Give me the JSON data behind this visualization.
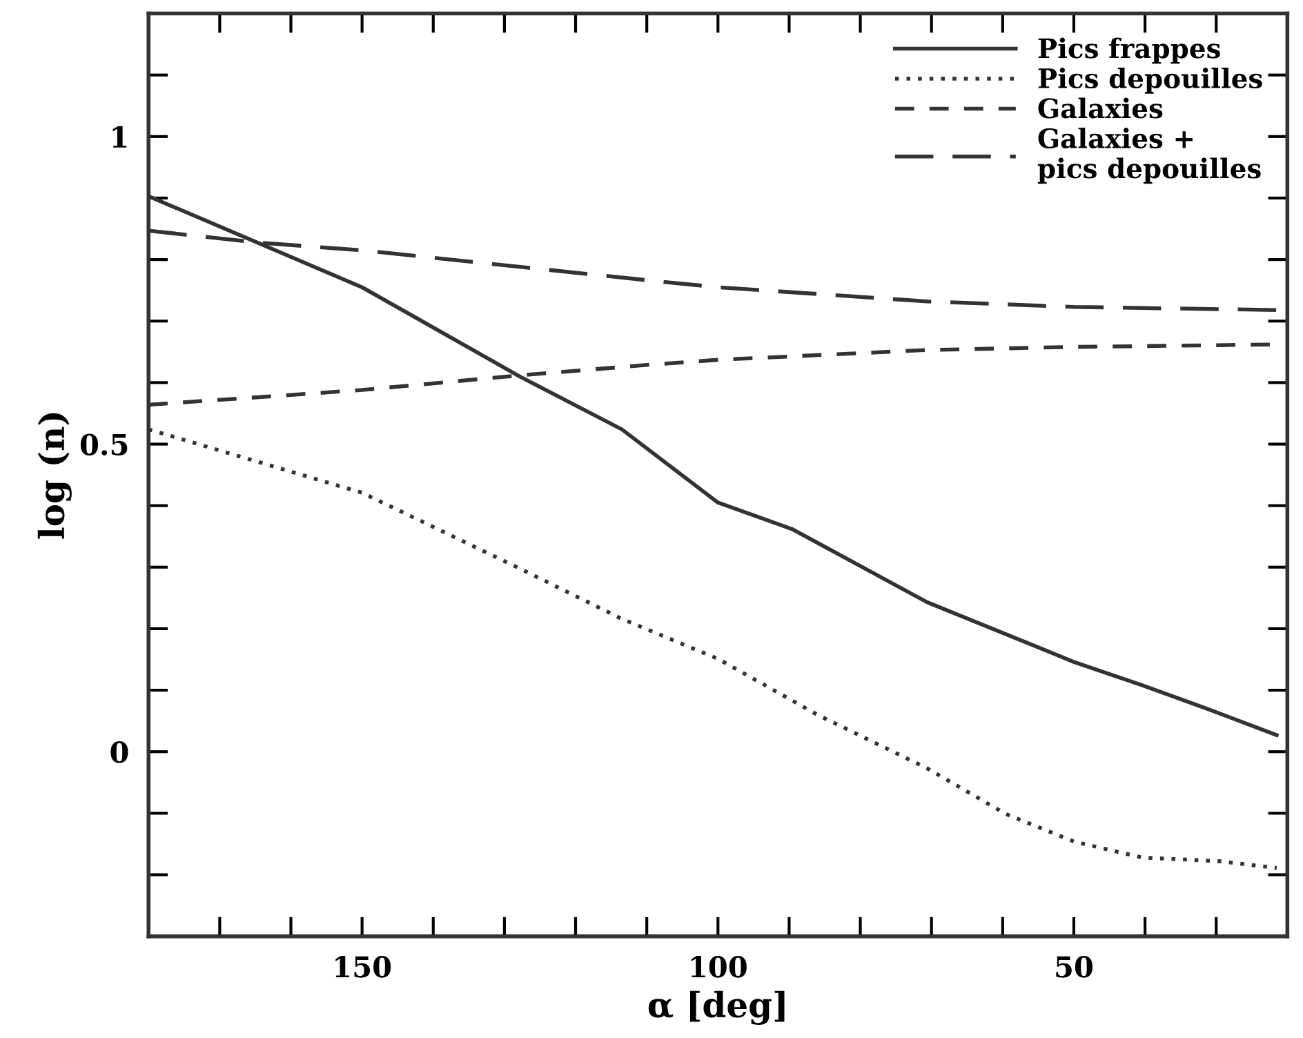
{
  "chart_data": {
    "type": "line",
    "xlabel": "α [deg]",
    "ylabel": "log (n)",
    "xlim": [
      180,
      20
    ],
    "ylim": [
      -0.3,
      1.2
    ],
    "xticks": [
      {
        "value": 170,
        "label": null
      },
      {
        "value": 160,
        "label": null
      },
      150,
      {
        "value": 140,
        "label": null
      },
      {
        "value": 130,
        "label": null
      },
      {
        "value": 120,
        "label": null
      },
      {
        "value": 110,
        "label": null
      },
      100,
      {
        "value": 90,
        "label": null
      },
      {
        "value": 80,
        "label": null
      },
      {
        "value": 70,
        "label": null
      },
      {
        "value": 60,
        "label": null
      },
      50,
      {
        "value": 40,
        "label": null
      },
      {
        "value": 30,
        "label": null
      }
    ],
    "yticks": [
      {
        "value": -0.2,
        "label": null
      },
      {
        "value": -0.1,
        "label": null
      },
      0,
      {
        "value": 0.1,
        "label": null
      },
      {
        "value": 0.2,
        "label": null
      },
      {
        "value": 0.3,
        "label": null
      },
      {
        "value": 0.4,
        "label": null
      },
      0.5,
      {
        "value": 0.6,
        "label": null
      },
      {
        "value": 0.7,
        "label": null
      },
      {
        "value": 0.8,
        "label": null
      },
      {
        "value": 0.9,
        "label": null
      },
      1,
      {
        "value": 1.1,
        "label": null
      }
    ],
    "grid": false,
    "legend": "top right",
    "series": [
      {
        "name": "Pics frappes",
        "color": "#333333",
        "line_style": "solid",
        "x": [
          180,
          150,
          127.7,
          113.5,
          100,
          89.6,
          70.6,
          50,
          40.4,
          31.3,
          21.5
        ],
        "values": [
          0.903,
          0.755,
          0.609,
          0.524,
          0.405,
          0.362,
          0.243,
          0.146,
          0.108,
          0.07,
          0.027
        ]
      },
      {
        "name": "Pics depouilles",
        "color": "#333333",
        "line_style": "dotted",
        "x": [
          180,
          150,
          127.7,
          113.5,
          100,
          86,
          70.6,
          59.6,
          50,
          40.4,
          29.5,
          21.5
        ],
        "values": [
          0.524,
          0.421,
          0.297,
          0.216,
          0.151,
          0.06,
          -0.027,
          -0.101,
          -0.146,
          -0.172,
          -0.178,
          -0.189
        ]
      },
      {
        "name": "Galaxies",
        "color": "#333333",
        "line_style": "dashed",
        "x": [
          180,
          150,
          127.7,
          109.6,
          100,
          70.6,
          50,
          21.5
        ],
        "values": [
          0.564,
          0.588,
          0.612,
          0.629,
          0.637,
          0.653,
          0.658,
          0.662
        ]
      },
      {
        "name": "Galaxies +\npics depouilles",
        "color": "#333333",
        "line_style": "longdash",
        "x": [
          180,
          165,
          150,
          127.7,
          109.6,
          100,
          70.6,
          50,
          21.5
        ],
        "values": [
          0.847,
          0.828,
          0.815,
          0.788,
          0.766,
          0.755,
          0.732,
          0.723,
          0.718
        ]
      }
    ]
  }
}
